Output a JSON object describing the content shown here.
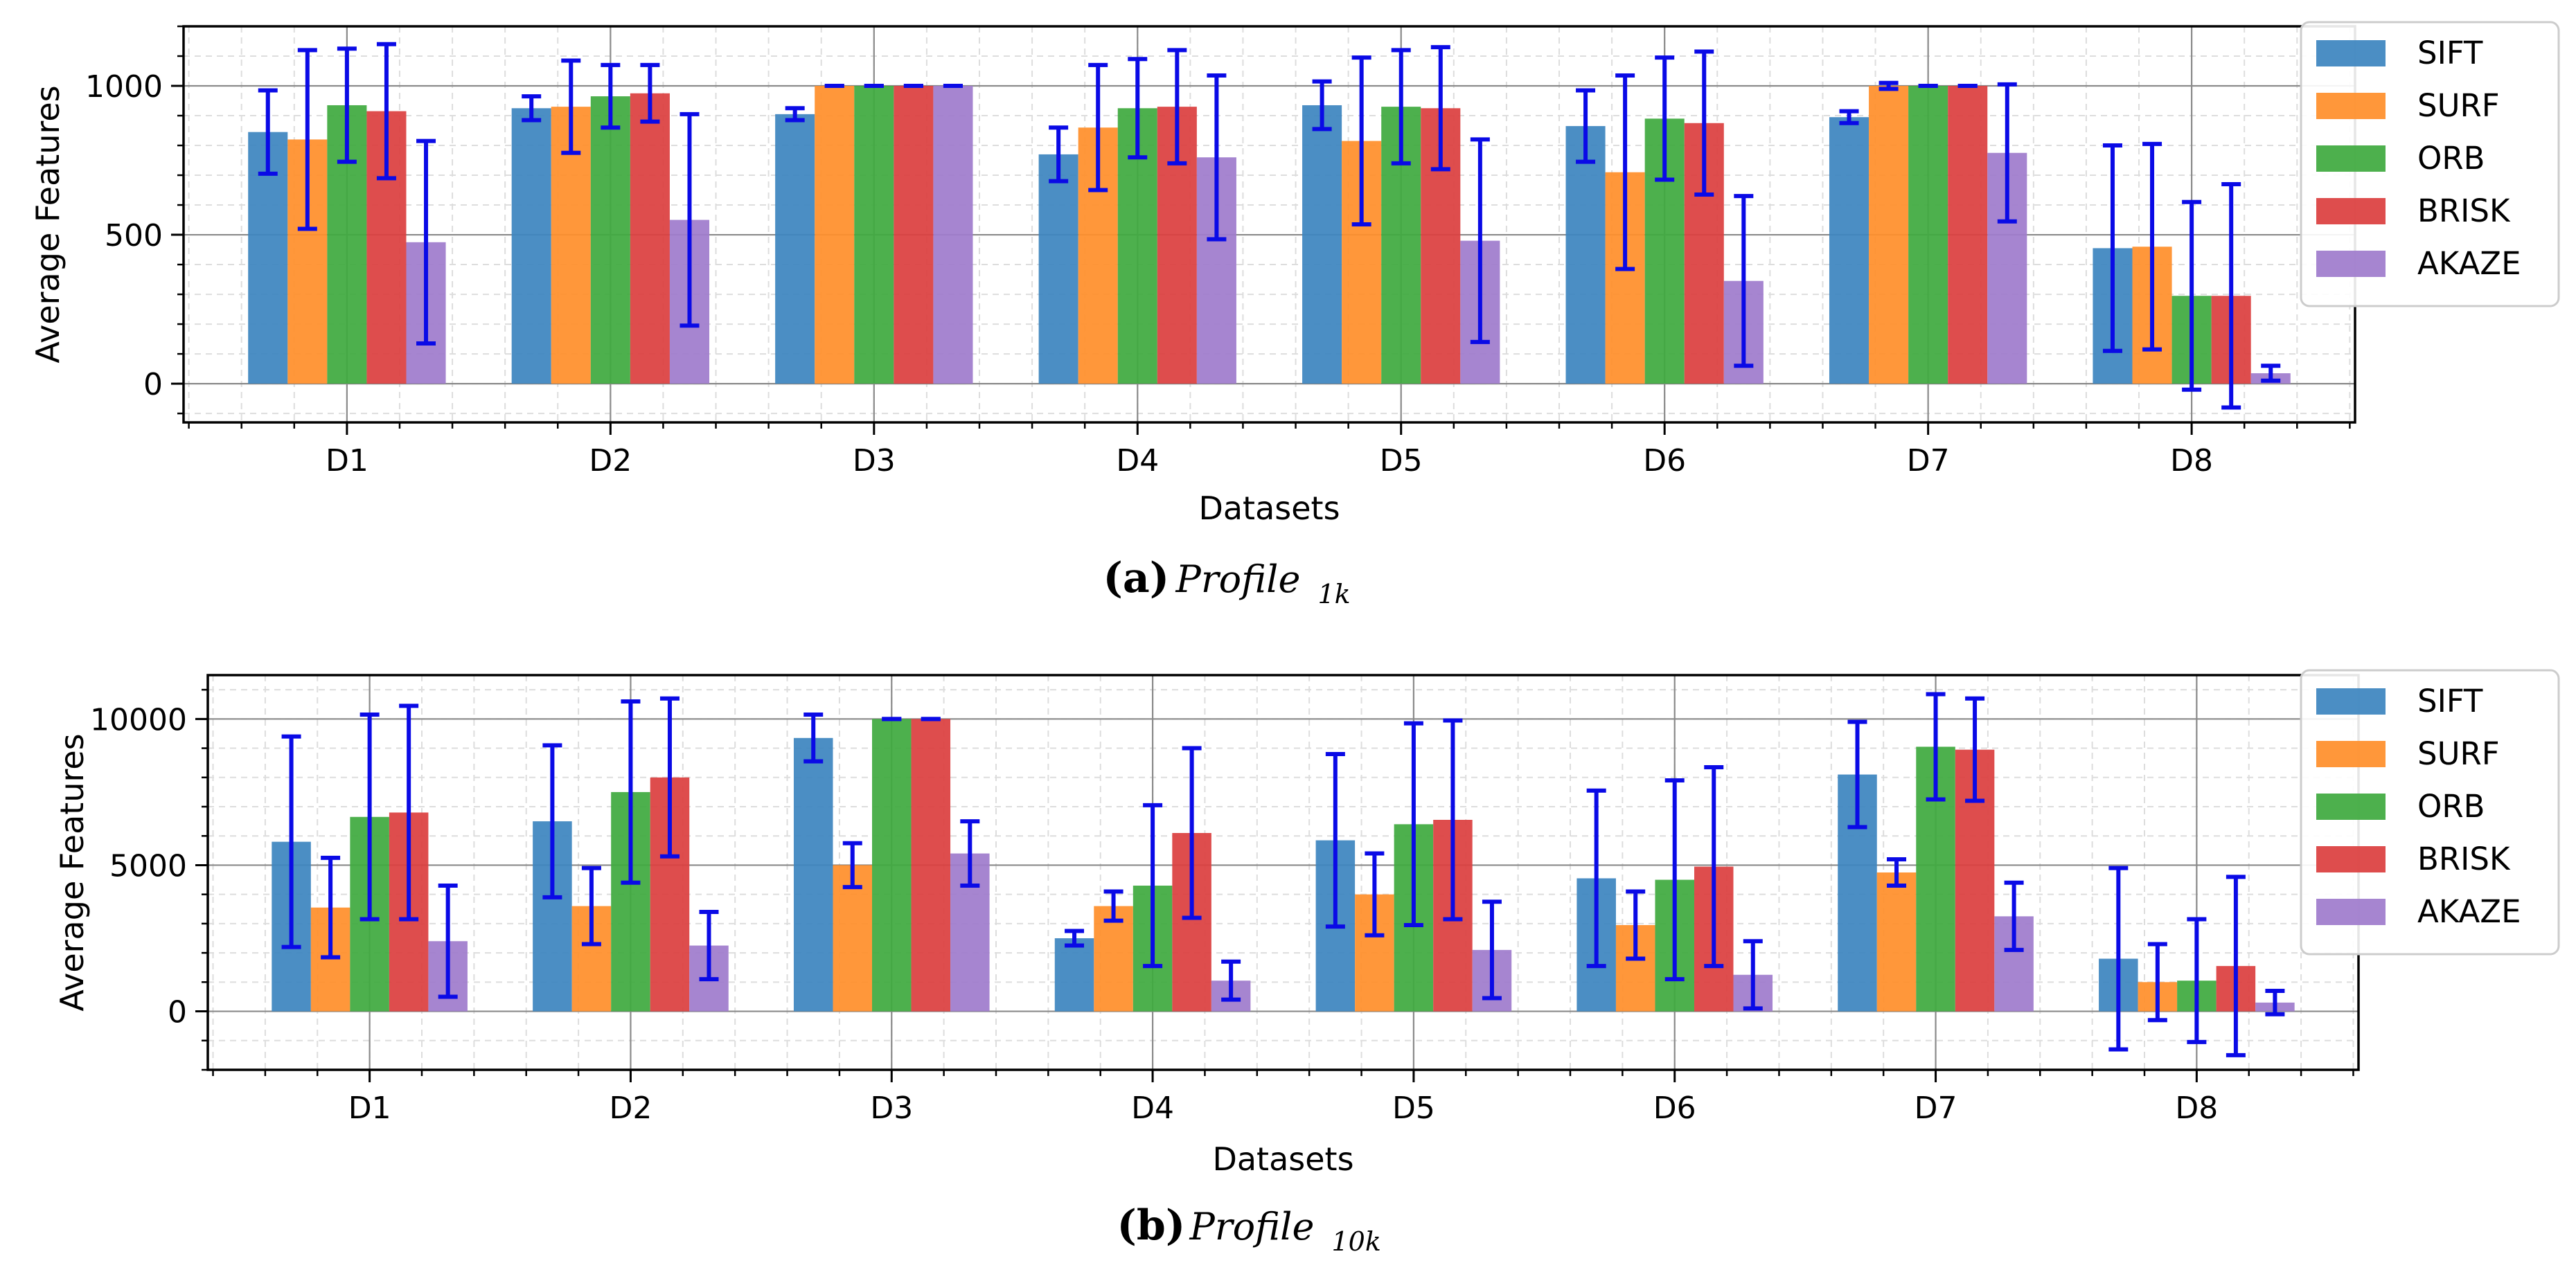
{
  "charts": [
    {
      "caption": {
        "letter": "(a)",
        "text": "Profile",
        "sub": "1k"
      },
      "chart_data": {
        "type": "bar",
        "categories": [
          "D1",
          "D2",
          "D3",
          "D4",
          "D5",
          "D6",
          "D7",
          "D8"
        ],
        "xlabel": "Datasets",
        "ylabel": "Average Features",
        "ylim": [
          -130,
          1200
        ],
        "yticks": [
          0,
          500,
          1000
        ],
        "grid": true,
        "legend": "outside-top-right",
        "series": [
          {
            "name": "SIFT",
            "color": "#3d85c0",
            "values": [
              845,
              925,
              905,
              770,
              935,
              865,
              895,
              455
            ],
            "errors": [
              140,
              40,
              20,
              90,
              80,
              120,
              20,
              345
            ]
          },
          {
            "name": "SURF",
            "color": "#ff8f2b",
            "values": [
              820,
              930,
              1000,
              860,
              815,
              710,
              1000,
              460
            ],
            "errors": [
              300,
              155,
              0,
              210,
              280,
              325,
              10,
              345
            ]
          },
          {
            "name": "ORB",
            "color": "#3faa3f",
            "values": [
              935,
              965,
              1000,
              925,
              930,
              890,
              1000,
              295
            ],
            "errors": [
              190,
              105,
              0,
              165,
              190,
              205,
              0,
              315
            ]
          },
          {
            "name": "BRISK",
            "color": "#dc3f3f",
            "values": [
              915,
              975,
              1000,
              930,
              925,
              875,
              1000,
              295
            ],
            "errors": [
              225,
              95,
              0,
              190,
              205,
              240,
              0,
              375
            ]
          },
          {
            "name": "AKAZE",
            "color": "#9f7ccc",
            "values": [
              475,
              550,
              1000,
              760,
              480,
              345,
              775,
              35
            ],
            "errors": [
              340,
              355,
              0,
              275,
              340,
              285,
              230,
              25
            ]
          }
        ]
      }
    },
    {
      "caption": {
        "letter": "(b)",
        "text": "Profile",
        "sub": "10k"
      },
      "chart_data": {
        "type": "bar",
        "categories": [
          "D1",
          "D2",
          "D3",
          "D4",
          "D5",
          "D6",
          "D7",
          "D8"
        ],
        "xlabel": "Datasets",
        "ylabel": "Average Features",
        "ylim": [
          -2000,
          11500
        ],
        "yticks": [
          0,
          5000,
          10000
        ],
        "grid": true,
        "legend": "outside-top-right",
        "series": [
          {
            "name": "SIFT",
            "color": "#3d85c0",
            "values": [
              5800,
              6500,
              9350,
              2500,
              5850,
              4550,
              8100,
              1800
            ],
            "errors": [
              3600,
              2600,
              800,
              250,
              2950,
              3000,
              1800,
              3100
            ]
          },
          {
            "name": "SURF",
            "color": "#ff8f2b",
            "values": [
              3550,
              3600,
              5000,
              3600,
              4000,
              2950,
              4750,
              1000
            ],
            "errors": [
              1700,
              1300,
              750,
              500,
              1400,
              1150,
              450,
              1300
            ]
          },
          {
            "name": "ORB",
            "color": "#3faa3f",
            "values": [
              6650,
              7500,
              10000,
              4300,
              6400,
              4500,
              9050,
              1050
            ],
            "errors": [
              3500,
              3100,
              0,
              2750,
              3450,
              3400,
              1800,
              2100
            ]
          },
          {
            "name": "BRISK",
            "color": "#dc3f3f",
            "values": [
              6800,
              8000,
              10000,
              6100,
              6550,
              4950,
              8950,
              1550
            ],
            "errors": [
              3650,
              2700,
              0,
              2900,
              3400,
              3400,
              1750,
              3050
            ]
          },
          {
            "name": "AKAZE",
            "color": "#9f7ccc",
            "values": [
              2400,
              2250,
              5400,
              1050,
              2100,
              1250,
              3250,
              300
            ],
            "errors": [
              1900,
              1150,
              1100,
              650,
              1650,
              1150,
              1150,
              400
            ]
          }
        ]
      }
    }
  ]
}
